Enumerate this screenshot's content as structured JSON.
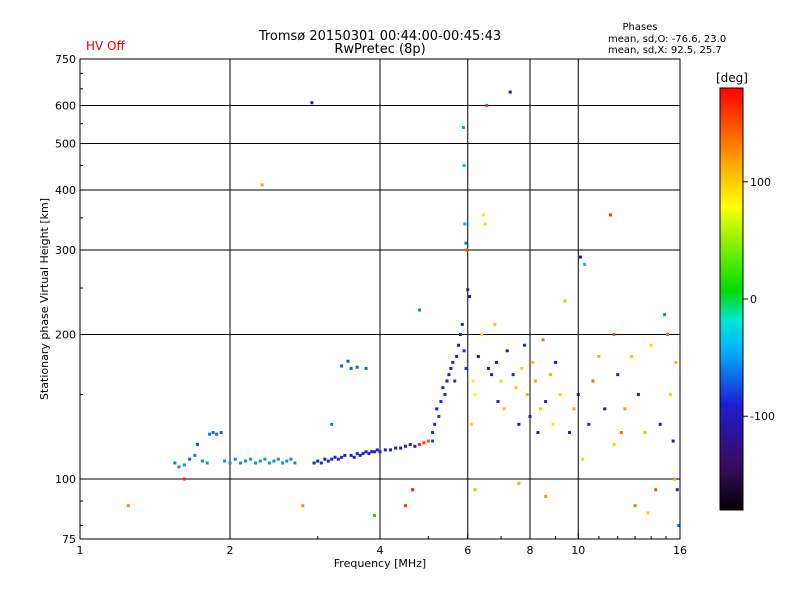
{
  "header": {
    "status": "HV Off",
    "status_color": "#e00000",
    "title_line1": "Tromsø 20150301 00:44:00-00:45:43",
    "title_line2": "RwPretec (8p)",
    "phase_block": {
      "heading": "Phases",
      "line_o": "mean, sd,O: -76.6, 23.0",
      "line_x": "mean, sd,X:  92.5, 25.7"
    }
  },
  "colorbar": {
    "unit": "[deg]",
    "tick_labels": [
      "100",
      "0",
      "-100"
    ],
    "range": [
      -180,
      180
    ],
    "tick_values": [
      100,
      0,
      -100
    ]
  },
  "chart_data": {
    "type": "scatter",
    "title": "Tromsø 20150301 00:44:00-00:45:43",
    "subtitle": "RwPretec (8p)",
    "xlabel": "Frequency [MHz]",
    "ylabel": "Stationary phase Virtual Height [km]",
    "x_scale": "log",
    "y_scale": "log",
    "xlim": [
      1,
      16
    ],
    "ylim": [
      75,
      750
    ],
    "x_tick_values": [
      1,
      2,
      4,
      6,
      8,
      10,
      16
    ],
    "x_tick_labels": [
      "1",
      "2",
      "4",
      "6",
      "8",
      "10",
      "16"
    ],
    "y_tick_values": [
      75,
      100,
      200,
      300,
      400,
      500,
      600,
      750
    ],
    "y_tick_labels": [
      "75",
      "100",
      "200",
      "300",
      "400",
      "500",
      "600",
      "750"
    ],
    "x_grid": [
      2,
      4,
      6,
      8,
      10
    ],
    "y_grid": [
      100,
      200,
      300,
      400,
      500,
      600
    ],
    "grid": true,
    "color_by": "phase (deg)",
    "points": [
      [
        1.25,
        88,
        130
      ],
      [
        1.62,
        100,
        160
      ],
      [
        1.55,
        108,
        -60
      ],
      [
        1.58,
        106,
        -55
      ],
      [
        1.62,
        107,
        -50
      ],
      [
        1.66,
        110,
        -70
      ],
      [
        1.7,
        112,
        -60
      ],
      [
        1.72,
        118,
        -75
      ],
      [
        1.76,
        109,
        -58
      ],
      [
        1.8,
        108,
        -55
      ],
      [
        1.82,
        124,
        -65
      ],
      [
        1.85,
        125,
        -68
      ],
      [
        1.88,
        124,
        -66
      ],
      [
        1.92,
        125,
        -70
      ],
      [
        1.95,
        109,
        -56
      ],
      [
        2.0,
        108,
        -54
      ],
      [
        2.05,
        110,
        -57
      ],
      [
        2.1,
        108,
        -55
      ],
      [
        2.15,
        109,
        -58
      ],
      [
        2.2,
        110,
        -56
      ],
      [
        2.25,
        108,
        -55
      ],
      [
        2.3,
        109,
        -57
      ],
      [
        2.35,
        110,
        -56
      ],
      [
        2.4,
        108,
        -54
      ],
      [
        2.45,
        109,
        -58
      ],
      [
        2.5,
        110,
        -56
      ],
      [
        2.55,
        108,
        -55
      ],
      [
        2.6,
        109,
        -57
      ],
      [
        2.65,
        110,
        -59
      ],
      [
        2.7,
        108,
        -56
      ],
      [
        2.32,
        410,
        120
      ],
      [
        2.8,
        88,
        125
      ],
      [
        2.92,
        608,
        -110
      ],
      [
        2.95,
        108,
        -90
      ],
      [
        3.0,
        109,
        -92
      ],
      [
        3.05,
        108,
        -88
      ],
      [
        3.1,
        110,
        -95
      ],
      [
        3.15,
        109,
        -90
      ],
      [
        3.2,
        110,
        -92
      ],
      [
        3.25,
        111,
        -88
      ],
      [
        3.3,
        110,
        -94
      ],
      [
        3.35,
        111,
        -90
      ],
      [
        3.4,
        112,
        -92
      ],
      [
        3.5,
        112,
        -95
      ],
      [
        3.55,
        111,
        -90
      ],
      [
        3.6,
        113,
        -88
      ],
      [
        3.65,
        112,
        -92
      ],
      [
        3.7,
        113,
        -94
      ],
      [
        3.75,
        114,
        -90
      ],
      [
        3.8,
        113,
        -92
      ],
      [
        3.85,
        114,
        -88
      ],
      [
        3.9,
        114,
        -95
      ],
      [
        3.95,
        115,
        -90
      ],
      [
        4.0,
        114,
        -92
      ],
      [
        4.1,
        115,
        -88
      ],
      [
        4.2,
        115,
        -90
      ],
      [
        4.3,
        116,
        -92
      ],
      [
        4.4,
        116,
        -95
      ],
      [
        4.5,
        117,
        -90
      ],
      [
        4.6,
        118,
        -88
      ],
      [
        4.7,
        117,
        -92
      ],
      [
        4.8,
        118,
        165
      ],
      [
        4.9,
        119,
        160
      ],
      [
        5.0,
        120,
        150
      ],
      [
        5.1,
        120,
        -80
      ],
      [
        3.2,
        130,
        -60
      ],
      [
        3.35,
        172,
        -70
      ],
      [
        3.45,
        176,
        -75
      ],
      [
        3.5,
        170,
        -70
      ],
      [
        3.6,
        171,
        -72
      ],
      [
        3.75,
        170,
        -70
      ],
      [
        4.5,
        88,
        160
      ],
      [
        4.65,
        95,
        170
      ],
      [
        4.8,
        225,
        -60
      ],
      [
        3.9,
        84,
        10
      ],
      [
        5.1,
        125,
        -85
      ],
      [
        5.15,
        130,
        -88
      ],
      [
        5.2,
        140,
        -90
      ],
      [
        5.25,
        135,
        -80
      ],
      [
        5.3,
        145,
        -92
      ],
      [
        5.35,
        155,
        -95
      ],
      [
        5.4,
        150,
        -88
      ],
      [
        5.45,
        160,
        -90
      ],
      [
        5.5,
        165,
        -95
      ],
      [
        5.55,
        170,
        -100
      ],
      [
        5.6,
        175,
        -92
      ],
      [
        5.65,
        160,
        -85
      ],
      [
        5.7,
        180,
        -90
      ],
      [
        5.75,
        190,
        -95
      ],
      [
        5.8,
        200,
        -100
      ],
      [
        5.85,
        210,
        -90
      ],
      [
        5.9,
        185,
        -85
      ],
      [
        5.95,
        170,
        -80
      ],
      [
        5.88,
        540,
        -50
      ],
      [
        5.9,
        450,
        -45
      ],
      [
        5.92,
        340,
        -45
      ],
      [
        5.95,
        310,
        -60
      ],
      [
        5.97,
        300,
        150
      ],
      [
        6.0,
        248,
        -100
      ],
      [
        6.05,
        240,
        -110
      ],
      [
        6.1,
        130,
        100
      ],
      [
        6.15,
        160,
        90
      ],
      [
        6.2,
        150,
        80
      ],
      [
        6.3,
        180,
        -100
      ],
      [
        6.4,
        200,
        95
      ],
      [
        6.45,
        355,
        90
      ],
      [
        6.5,
        340,
        95
      ],
      [
        6.55,
        600,
        160
      ],
      [
        6.6,
        170,
        -110
      ],
      [
        6.7,
        165,
        -105
      ],
      [
        6.8,
        210,
        100
      ],
      [
        6.85,
        175,
        -100
      ],
      [
        6.9,
        145,
        -95
      ],
      [
        7.0,
        160,
        60
      ],
      [
        7.1,
        140,
        110
      ],
      [
        7.2,
        185,
        -110
      ],
      [
        7.3,
        640,
        -110
      ],
      [
        7.4,
        165,
        -90
      ],
      [
        7.5,
        155,
        105
      ],
      [
        7.6,
        130,
        -100
      ],
      [
        7.7,
        170,
        100
      ],
      [
        7.8,
        190,
        -85
      ],
      [
        7.9,
        150,
        110
      ],
      [
        8.0,
        135,
        -95
      ],
      [
        8.1,
        175,
        105
      ],
      [
        8.2,
        160,
        120
      ],
      [
        8.3,
        125,
        -100
      ],
      [
        8.4,
        140,
        100
      ],
      [
        8.5,
        195,
        140
      ],
      [
        8.6,
        145,
        -105
      ],
      [
        8.8,
        165,
        110
      ],
      [
        8.9,
        130,
        90
      ],
      [
        9.0,
        175,
        -110
      ],
      [
        9.2,
        150,
        100
      ],
      [
        9.4,
        235,
        110
      ],
      [
        9.6,
        125,
        -95
      ],
      [
        9.8,
        140,
        115
      ],
      [
        10.0,
        150,
        -105
      ],
      [
        10.1,
        290,
        -110
      ],
      [
        10.3,
        280,
        -40
      ],
      [
        10.5,
        130,
        -100
      ],
      [
        10.7,
        160,
        140
      ],
      [
        11.0,
        180,
        110
      ],
      [
        11.3,
        140,
        -105
      ],
      [
        11.6,
        355,
        160
      ],
      [
        11.8,
        200,
        150
      ],
      [
        12.0,
        165,
        -95
      ],
      [
        12.4,
        140,
        120
      ],
      [
        12.8,
        180,
        105
      ],
      [
        13.2,
        150,
        -100
      ],
      [
        13.6,
        125,
        110
      ],
      [
        14.0,
        190,
        95
      ],
      [
        14.3,
        95,
        150
      ],
      [
        14.6,
        130,
        -105
      ],
      [
        14.9,
        220,
        -60
      ],
      [
        15.1,
        200,
        140
      ],
      [
        15.3,
        150,
        100
      ],
      [
        15.5,
        120,
        -110
      ],
      [
        15.7,
        175,
        110
      ],
      [
        15.8,
        95,
        -90
      ],
      [
        15.9,
        80,
        -60
      ],
      [
        13.0,
        88,
        140
      ],
      [
        13.8,
        85,
        100
      ],
      [
        15.6,
        100,
        120
      ],
      [
        6.2,
        95,
        110
      ],
      [
        7.6,
        98,
        115
      ],
      [
        8.6,
        92,
        120
      ],
      [
        10.2,
        110,
        100
      ],
      [
        11.8,
        118,
        100
      ],
      [
        12.2,
        125,
        140
      ]
    ]
  }
}
